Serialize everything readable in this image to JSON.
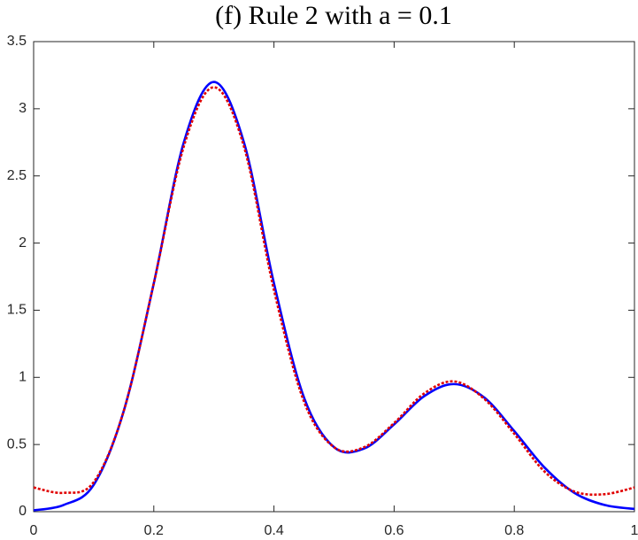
{
  "chart_data": {
    "type": "line",
    "title": "(f) Rule 2 with a = 0.1",
    "x": [
      0,
      0.05,
      0.1,
      0.15,
      0.2,
      0.25,
      0.3,
      0.35,
      0.4,
      0.45,
      0.5,
      0.55,
      0.6,
      0.65,
      0.7,
      0.75,
      0.8,
      0.85,
      0.9,
      0.95,
      1
    ],
    "series": [
      {
        "color": "#0000ff",
        "style": "solid",
        "values": [
          0.01,
          0.05,
          0.2,
          0.75,
          1.7,
          2.75,
          3.2,
          2.75,
          1.7,
          0.85,
          0.48,
          0.47,
          0.65,
          0.86,
          0.95,
          0.85,
          0.6,
          0.33,
          0.14,
          0.05,
          0.02
        ]
      },
      {
        "color": "#e00000",
        "style": "dotted",
        "values": [
          0.18,
          0.14,
          0.22,
          0.75,
          1.7,
          2.72,
          3.16,
          2.72,
          1.65,
          0.82,
          0.48,
          0.48,
          0.66,
          0.88,
          0.97,
          0.84,
          0.58,
          0.3,
          0.15,
          0.13,
          0.18
        ]
      }
    ],
    "xlim": [
      0,
      1
    ],
    "xticks": [
      0,
      0.2,
      0.4,
      0.6,
      0.8,
      1
    ],
    "ylim": [
      0,
      3.5
    ],
    "yticks": [
      0,
      0.5,
      1,
      1.5,
      2,
      2.5,
      3,
      3.5
    ],
    "grid": false
  }
}
